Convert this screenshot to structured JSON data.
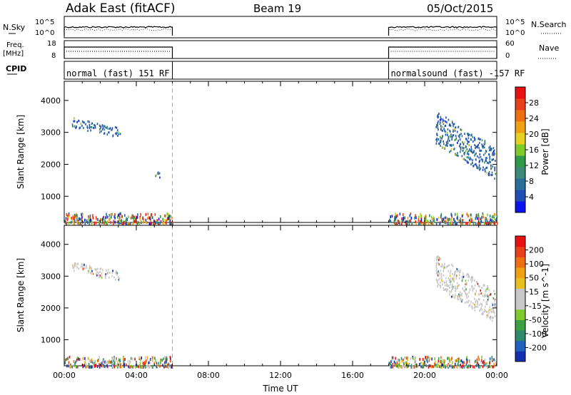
{
  "header": {
    "station": "Adak East (fitACF)",
    "beam": "Beam 19",
    "date": "05/Oct/2015"
  },
  "panels": {
    "nsky_label": "N.Sky",
    "nsearch_label": "N.Search",
    "freq_label_1": "Freq.",
    "freq_label_2": "[MHz]",
    "nave_label": "Nave",
    "cpid_label": "CPID",
    "nsky_ticks": [
      "10^5",
      "10^0"
    ],
    "nsearch_ticks": [
      "10^5",
      "10^0"
    ],
    "freq_ticks": [
      "18",
      "8"
    ],
    "nave_ticks": [
      "60",
      "0"
    ],
    "cpid_segments": [
      {
        "label": "normal (fast) 151 RF",
        "start_h": 0,
        "end_h": 6
      },
      {
        "label": "normalsound (fast) -157 RF",
        "start_h": 18,
        "end_h": 24
      }
    ]
  },
  "chart_data": [
    {
      "type": "heatmap",
      "name": "power",
      "ylabel": "Slant Range [km]",
      "xlabel": "",
      "ylim": [
        180,
        4600
      ],
      "xlim": [
        0,
        24
      ],
      "yticks": [
        1000,
        2000,
        3000,
        4000
      ],
      "ytick_labels": [
        "1000",
        "2000",
        "3000",
        "4000"
      ],
      "colorbar": {
        "label": "Power [dB]",
        "ticks": [
          "28",
          "24",
          "20",
          "16",
          "12",
          "8",
          "4"
        ],
        "colors": [
          "#0a14f0",
          "#1f4fb5",
          "#2a6f9a",
          "#3b8a7a",
          "#2e9a4a",
          "#7dcc2a",
          "#e8d020",
          "#f0a010",
          "#ec7010",
          "#e84018",
          "#e81010"
        ]
      },
      "data_gaps": [
        [
          6,
          18
        ]
      ],
      "echo_regions": [
        {
          "t": [
            0.4,
            3.1
          ],
          "r": [
            2900,
            3450
          ],
          "level": "low-mid"
        },
        {
          "t": [
            4.9,
            5.3
          ],
          "r": [
            1550,
            1850
          ],
          "level": "low"
        },
        {
          "t": [
            20.6,
            23.9
          ],
          "r": [
            1700,
            3550
          ],
          "level": "low-high"
        },
        {
          "t": [
            0,
            6
          ],
          "r": [
            180,
            500
          ],
          "level": "mixed"
        },
        {
          "t": [
            18,
            24
          ],
          "r": [
            180,
            500
          ],
          "level": "mixed"
        }
      ]
    },
    {
      "type": "heatmap",
      "name": "velocity",
      "ylabel": "Slant Range [km]",
      "xlabel": "Time UT",
      "ylim": [
        180,
        4600
      ],
      "xlim": [
        0,
        24
      ],
      "yticks": [
        1000,
        2000,
        3000,
        4000
      ],
      "ytick_labels": [
        "1000",
        "2000",
        "3000",
        "4000"
      ],
      "xticks": [
        0,
        4,
        8,
        12,
        16,
        20,
        24
      ],
      "xtick_labels": [
        "00:00",
        "04:00",
        "08:00",
        "12:00",
        "16:00",
        "20:00",
        "00:00"
      ],
      "colorbar": {
        "label": "Velocity [m s^-1]",
        "ticks": [
          "200",
          "100",
          "50",
          "15",
          "-15",
          "-50",
          "-100",
          "-200"
        ],
        "colors": [
          "#1230b0",
          "#2060c0",
          "#2e8a6a",
          "#3aa040",
          "#80cc30",
          "#c8c8c8",
          "#c8c8c8",
          "#e8c020",
          "#f0a010",
          "#ec7010",
          "#e84018",
          "#e81010"
        ]
      },
      "data_gaps": [
        [
          6,
          18
        ]
      ],
      "echo_regions": [
        {
          "t": [
            0.4,
            3.1
          ],
          "r": [
            2900,
            3450
          ],
          "level": "near-zero"
        },
        {
          "t": [
            20.6,
            23.9
          ],
          "r": [
            1700,
            3550
          ],
          "level": "near-zero"
        },
        {
          "t": [
            0,
            6
          ],
          "r": [
            180,
            500
          ],
          "level": "mixed"
        },
        {
          "t": [
            18,
            24
          ],
          "r": [
            180,
            500
          ],
          "level": "mixed"
        }
      ]
    }
  ]
}
